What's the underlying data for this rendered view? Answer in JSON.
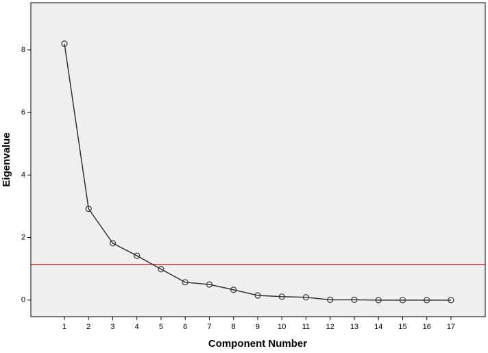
{
  "chart_data": {
    "type": "line",
    "x_label": "Component Number",
    "y_label": "Eigenvalue",
    "x": [
      1,
      2,
      3,
      4,
      5,
      6,
      7,
      8,
      9,
      10,
      11,
      12,
      13,
      14,
      15,
      16,
      17
    ],
    "series": [
      {
        "color": "#333333",
        "values": [
          8.2,
          2.92,
          1.82,
          1.42,
          0.99,
          0.57,
          0.5,
          0.33,
          0.15,
          0.11,
          0.09,
          0.01,
          0.01,
          0,
          0,
          0,
          0
        ]
      }
    ],
    "xlim": [
      -0.39,
      18.42
    ],
    "xticks": [
      1,
      2,
      3,
      4,
      5,
      6,
      7,
      8,
      9,
      10,
      11,
      12,
      13,
      14,
      15,
      16,
      17
    ],
    "ylim": [
      -0.53,
      9.51
    ],
    "yticks": [
      0,
      2,
      4,
      6,
      8
    ],
    "reference_line": {
      "value": 1.14,
      "color": "#c00000"
    },
    "background": "#f0f0f0"
  }
}
